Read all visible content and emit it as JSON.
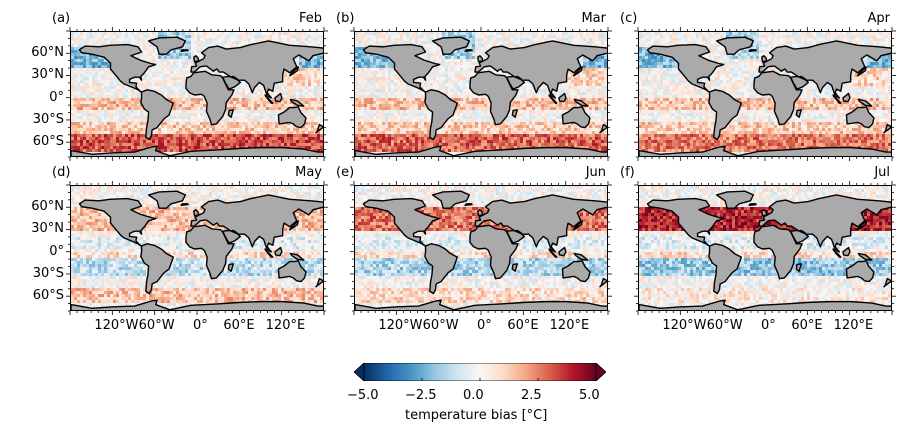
{
  "chart_data": {
    "type": "heatmap",
    "description_title": "",
    "panels": [
      {
        "letter": "(a)",
        "month": "Feb"
      },
      {
        "letter": "(b)",
        "month": "Mar"
      },
      {
        "letter": "(c)",
        "month": "Apr"
      },
      {
        "letter": "(d)",
        "month": "May"
      },
      {
        "letter": "(e)",
        "month": "Jun"
      },
      {
        "letter": "(f)",
        "month": "Jul"
      }
    ],
    "lat_ticks": [
      "60°N",
      "30°N",
      "0°",
      "30°S",
      "60°S"
    ],
    "lon_ticks": [
      "120°W",
      "60°W",
      "0°",
      "60°E",
      "120°E"
    ],
    "colorbar": {
      "label": "temperature bias [°C]",
      "ticks": [
        "−5.0",
        "−2.5",
        "0.0",
        "2.5",
        "5.0"
      ],
      "vmin": -5.0,
      "vmax": 5.0,
      "colormap": "RdBu_r",
      "extend": "both"
    },
    "map_extent": {
      "lon": [
        -180,
        180
      ],
      "lat": [
        -80,
        90
      ]
    }
  },
  "colors": {
    "land": "#aaaaaa",
    "coast": "#000000",
    "neg_strong": "#053061",
    "neutral": "#f7f7f7",
    "pos_strong": "#67001f"
  }
}
